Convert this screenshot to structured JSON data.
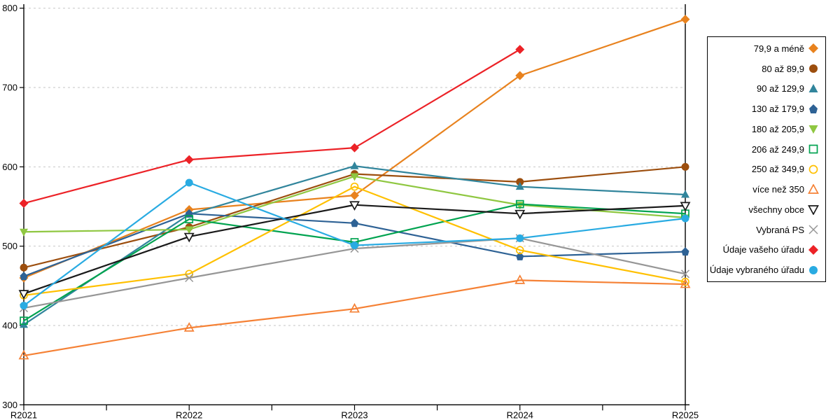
{
  "chart_data": {
    "type": "line",
    "title": "",
    "xlabel": "",
    "ylabel": "",
    "categories": [
      "R2021",
      "R2022",
      "R2023",
      "R2024",
      "R2025"
    ],
    "y_axis": {
      "min": 300,
      "max": 800,
      "step": 100
    },
    "grid": "horizontal-dashed",
    "legend_position": "right",
    "series": [
      {
        "name": "79,9 a méně",
        "color": "#E8821E",
        "marker": "diamond",
        "values": [
          460,
          546,
          564,
          715,
          786
        ]
      },
      {
        "name": "80 až 89,9",
        "color": "#9C4E0E",
        "marker": "circle",
        "values": [
          473,
          524,
          591,
          581,
          600
        ]
      },
      {
        "name": "90 až 129,9",
        "color": "#31859C",
        "marker": "triangle",
        "values": [
          401,
          540,
          601,
          575,
          565
        ]
      },
      {
        "name": "130 až 179,9",
        "color": "#2E6295",
        "marker": "pentagon",
        "values": [
          462,
          541,
          529,
          487,
          493
        ]
      },
      {
        "name": "180 až 205,9",
        "color": "#8FC741",
        "marker": "triangle-down",
        "values": [
          518,
          521,
          588,
          552,
          536
        ]
      },
      {
        "name": "206 až 249,9",
        "color": "#00A350",
        "marker": "square-open",
        "values": [
          406,
          534,
          505,
          553,
          541
        ]
      },
      {
        "name": "250 až 349,9",
        "color": "#FFC000",
        "marker": "circle-open",
        "values": [
          438,
          465,
          575,
          495,
          455
        ]
      },
      {
        "name": "více než 350",
        "color": "#F58135",
        "marker": "triangle-open",
        "values": [
          362,
          397,
          421,
          457,
          452
        ]
      },
      {
        "name": "všechny obce",
        "color": "#1A1A1A",
        "marker": "triangle-down-open",
        "values": [
          440,
          512,
          552,
          541,
          551
        ]
      },
      {
        "name": "Vybraná PS",
        "color": "#969696",
        "marker": "x",
        "values": [
          422,
          460,
          497,
          510,
          465
        ]
      },
      {
        "name": "Údaje vašeho úřadu",
        "color": "#EC2227",
        "marker": "diamond",
        "values": [
          554,
          609,
          624,
          748,
          null
        ]
      },
      {
        "name": "Údaje vybraného úřadu",
        "color": "#29ABE2",
        "marker": "circle",
        "values": [
          425,
          580,
          501,
          510,
          535
        ]
      }
    ]
  }
}
